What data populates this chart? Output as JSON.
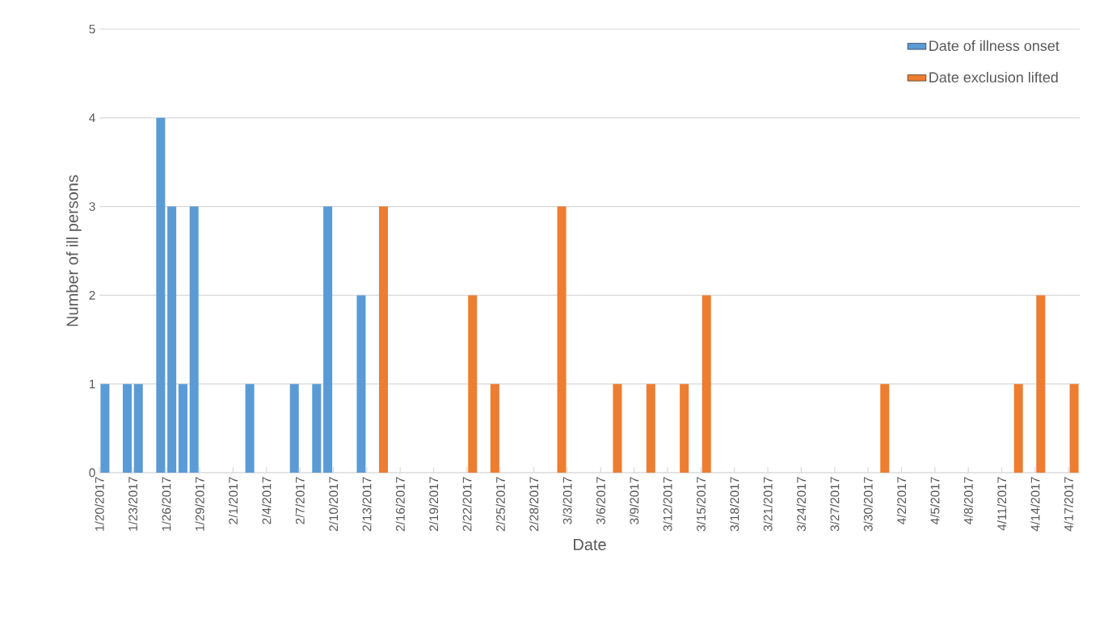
{
  "chart_data": {
    "type": "bar",
    "xlabel": "Date",
    "ylabel": "Number of ill persons",
    "xlim": [
      "2017-01-20",
      "2017-04-18"
    ],
    "xticks": [
      {
        "value": "2017-01-20",
        "label": "1/20/2017"
      },
      {
        "value": "2017-01-23",
        "label": "1/23/2017"
      },
      {
        "value": "2017-01-26",
        "label": "1/26/2017"
      },
      {
        "value": "2017-01-29",
        "label": "1/29/2017"
      },
      {
        "value": "2017-02-01",
        "label": "2/1/2017"
      },
      {
        "value": "2017-02-04",
        "label": "2/4/2017"
      },
      {
        "value": "2017-02-07",
        "label": "2/7/2017"
      },
      {
        "value": "2017-02-10",
        "label": "2/10/2017"
      },
      {
        "value": "2017-02-13",
        "label": "2/13/2017"
      },
      {
        "value": "2017-02-16",
        "label": "2/16/2017"
      },
      {
        "value": "2017-02-19",
        "label": "2/19/2017"
      },
      {
        "value": "2017-02-22",
        "label": "2/22/2017"
      },
      {
        "value": "2017-02-25",
        "label": "2/25/2017"
      },
      {
        "value": "2017-02-28",
        "label": "2/28/2017"
      },
      {
        "value": "2017-03-03",
        "label": "3/3/2017"
      },
      {
        "value": "2017-03-06",
        "label": "3/6/2017"
      },
      {
        "value": "2017-03-09",
        "label": "3/9/2017"
      },
      {
        "value": "2017-03-12",
        "label": "3/12/2017"
      },
      {
        "value": "2017-03-15",
        "label": "3/15/2017"
      },
      {
        "value": "2017-03-18",
        "label": "3/18/2017"
      },
      {
        "value": "2017-03-21",
        "label": "3/21/2017"
      },
      {
        "value": "2017-03-24",
        "label": "3/24/2017"
      },
      {
        "value": "2017-03-27",
        "label": "3/27/2017"
      },
      {
        "value": "2017-03-30",
        "label": "3/30/2017"
      },
      {
        "value": "2017-04-02",
        "label": "4/2/2017"
      },
      {
        "value": "2017-04-05",
        "label": "4/5/2017"
      },
      {
        "value": "2017-04-08",
        "label": "4/8/2017"
      },
      {
        "value": "2017-04-11",
        "label": "4/11/2017"
      },
      {
        "value": "2017-04-14",
        "label": "4/14/2017"
      },
      {
        "value": "2017-04-17",
        "label": "4/17/2017"
      }
    ],
    "ylim": [
      0,
      5
    ],
    "yticks": [
      0,
      1,
      2,
      3,
      4,
      5
    ],
    "grid": "y",
    "legend": "top right",
    "series": [
      {
        "name": "Date of illness onset",
        "color": "#5b9bd5",
        "x": [
          "2017-01-20",
          "2017-01-22",
          "2017-01-23",
          "2017-01-25",
          "2017-01-26",
          "2017-01-27",
          "2017-01-28",
          "2017-02-02",
          "2017-02-06",
          "2017-02-08",
          "2017-02-09",
          "2017-02-12"
        ],
        "values": [
          1,
          1,
          1,
          4,
          3,
          1,
          3,
          1,
          1,
          1,
          3,
          2
        ]
      },
      {
        "name": "Date exclusion lifted",
        "color": "#ed7d31",
        "x": [
          "2017-02-14",
          "2017-02-22",
          "2017-02-24",
          "2017-03-02",
          "2017-03-07",
          "2017-03-10",
          "2017-03-13",
          "2017-03-15",
          "2017-03-31",
          "2017-04-12",
          "2017-04-14",
          "2017-04-17"
        ],
        "values": [
          3,
          2,
          1,
          3,
          1,
          1,
          1,
          2,
          1,
          1,
          2,
          1
        ]
      }
    ]
  }
}
